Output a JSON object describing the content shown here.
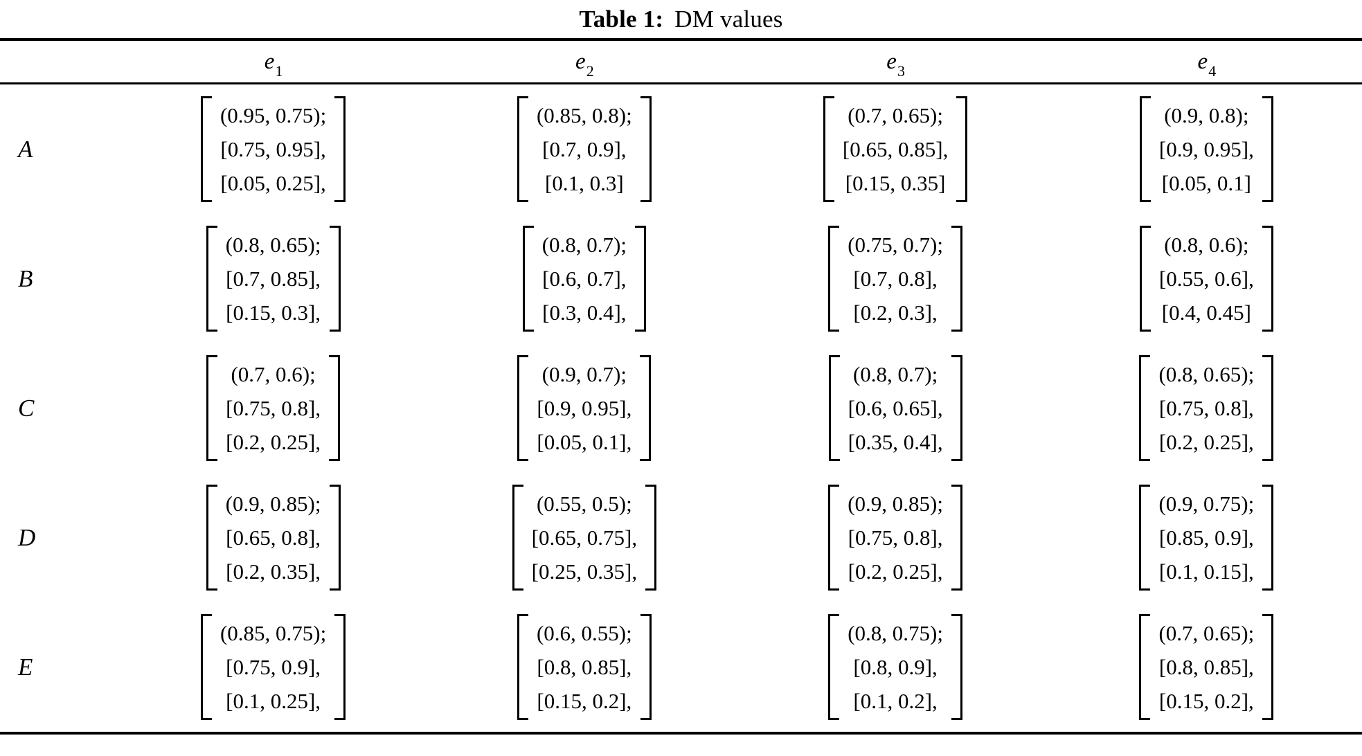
{
  "title": {
    "label": "Table 1:",
    "text": "DM values"
  },
  "columns": [
    {
      "base": "e",
      "sub": "1"
    },
    {
      "base": "e",
      "sub": "2"
    },
    {
      "base": "e",
      "sub": "3"
    },
    {
      "base": "e",
      "sub": "4"
    }
  ],
  "rows": [
    {
      "label": "A",
      "cells": [
        [
          "(0.95, 0.75);",
          "[0.75, 0.95],",
          "[0.05, 0.25],"
        ],
        [
          "(0.85, 0.8);",
          "[0.7, 0.9],",
          "[0.1, 0.3]"
        ],
        [
          "(0.7, 0.65);",
          "[0.65, 0.85],",
          "[0.15, 0.35]"
        ],
        [
          "(0.9, 0.8);",
          "[0.9, 0.95],",
          "[0.05, 0.1]"
        ]
      ]
    },
    {
      "label": "B",
      "cells": [
        [
          "(0.8, 0.65);",
          "[0.7, 0.85],",
          "[0.15, 0.3],"
        ],
        [
          "(0.8, 0.7);",
          "[0.6, 0.7],",
          "[0.3, 0.4],"
        ],
        [
          "(0.75, 0.7);",
          "[0.7, 0.8],",
          "[0.2, 0.3],"
        ],
        [
          "(0.8, 0.6);",
          "[0.55, 0.6],",
          "[0.4, 0.45]"
        ]
      ]
    },
    {
      "label": "C",
      "cells": [
        [
          "(0.7, 0.6);",
          "[0.75, 0.8],",
          "[0.2, 0.25],"
        ],
        [
          "(0.9, 0.7);",
          "[0.9, 0.95],",
          "[0.05, 0.1],"
        ],
        [
          "(0.8, 0.7);",
          "[0.6, 0.65],",
          "[0.35, 0.4],"
        ],
        [
          "(0.8, 0.65);",
          "[0.75, 0.8],",
          "[0.2, 0.25],"
        ]
      ]
    },
    {
      "label": "D",
      "cells": [
        [
          "(0.9, 0.85);",
          "[0.65, 0.8],",
          "[0.2, 0.35],"
        ],
        [
          "(0.55, 0.5);",
          "[0.65, 0.75],",
          "[0.25, 0.35],"
        ],
        [
          "(0.9, 0.85);",
          "[0.75, 0.8],",
          "[0.2, 0.25],"
        ],
        [
          "(0.9, 0.75);",
          "[0.85, 0.9],",
          "[0.1, 0.15],"
        ]
      ]
    },
    {
      "label": "E",
      "cells": [
        [
          "(0.85, 0.75);",
          "[0.75, 0.9],",
          "[0.1, 0.25],"
        ],
        [
          "(0.6, 0.55);",
          "[0.8, 0.85],",
          "[0.15, 0.2],"
        ],
        [
          "(0.8, 0.75);",
          "[0.8, 0.9],",
          "[0.1, 0.2],"
        ],
        [
          "(0.7, 0.65);",
          "[0.8, 0.85],",
          "[0.15, 0.2],"
        ]
      ]
    }
  ],
  "ink_color": "#000000",
  "background_color": "#ffffff"
}
